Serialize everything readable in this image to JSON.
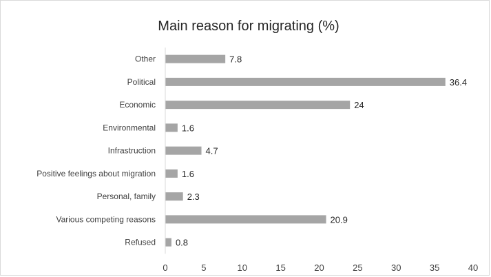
{
  "chart_data": {
    "type": "bar",
    "orientation": "horizontal",
    "title": "Main reason for migrating (%)",
    "categories": [
      "Other",
      "Political",
      "Economic",
      "Environmental",
      "Infrastruction",
      "Positive feelings about migration",
      "Personal, family",
      "Various competing reasons",
      "Refused"
    ],
    "values": [
      7.8,
      36.4,
      24,
      1.6,
      4.7,
      1.6,
      2.3,
      20.9,
      0.8
    ],
    "data_labels": [
      "7.8",
      "36.4",
      "24",
      "1.6",
      "4.7",
      "1.6",
      "2.3",
      "20.9",
      "0.8"
    ],
    "xlim": [
      0,
      40
    ],
    "xticks": [
      0,
      5,
      10,
      15,
      20,
      25,
      30,
      35,
      40
    ],
    "xlabel": "",
    "ylabel": "",
    "grid": false,
    "legend": "none",
    "bar_color": "#a5a5a5"
  }
}
